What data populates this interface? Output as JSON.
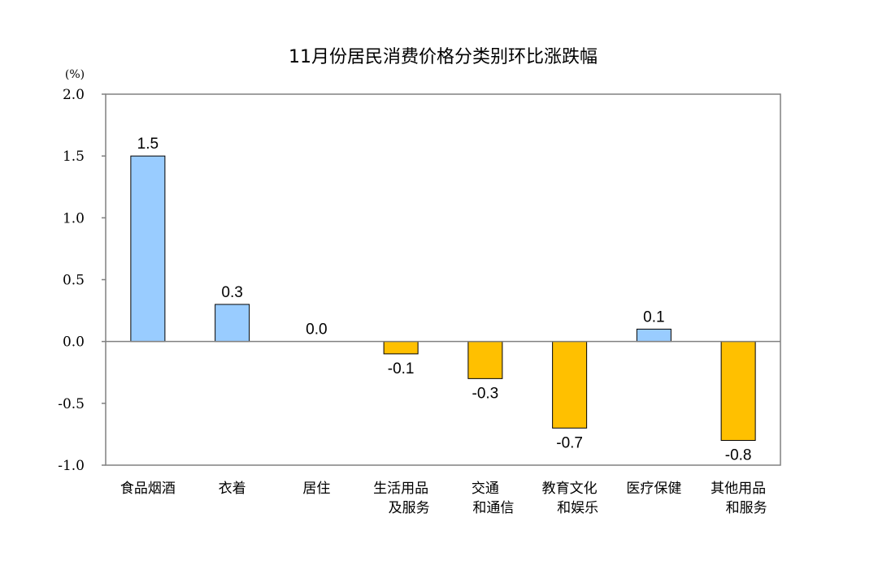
{
  "chart_data": {
    "type": "bar",
    "title": "11月份居民消费价格分类别环比涨跌幅",
    "unit_label": "(%)",
    "ylim": [
      -1.0,
      2.0
    ],
    "yticks": [
      "2.0",
      "1.5",
      "1.0",
      "0.5",
      "0.0",
      "-0.5",
      "-1.0"
    ],
    "categories": [
      [
        "食品烟酒"
      ],
      [
        "衣着"
      ],
      [
        "居住"
      ],
      [
        "生活用品",
        "及服务"
      ],
      [
        "交通",
        "和通信"
      ],
      [
        "教育文化",
        "和娱乐"
      ],
      [
        "医疗保健"
      ],
      [
        "其他用品",
        "和服务"
      ]
    ],
    "values": [
      1.5,
      0.3,
      0.0,
      -0.1,
      -0.3,
      -0.7,
      0.1,
      -0.8
    ],
    "data_labels": [
      "1.5",
      "0.3",
      "0.0",
      "-0.1",
      "-0.3",
      "-0.7",
      "0.1",
      "-0.8"
    ],
    "grid": false,
    "legend": "none",
    "colors": {
      "positive": "#99ccff",
      "negative": "#ffc000",
      "border": "#000000",
      "axis": "#808080"
    }
  }
}
